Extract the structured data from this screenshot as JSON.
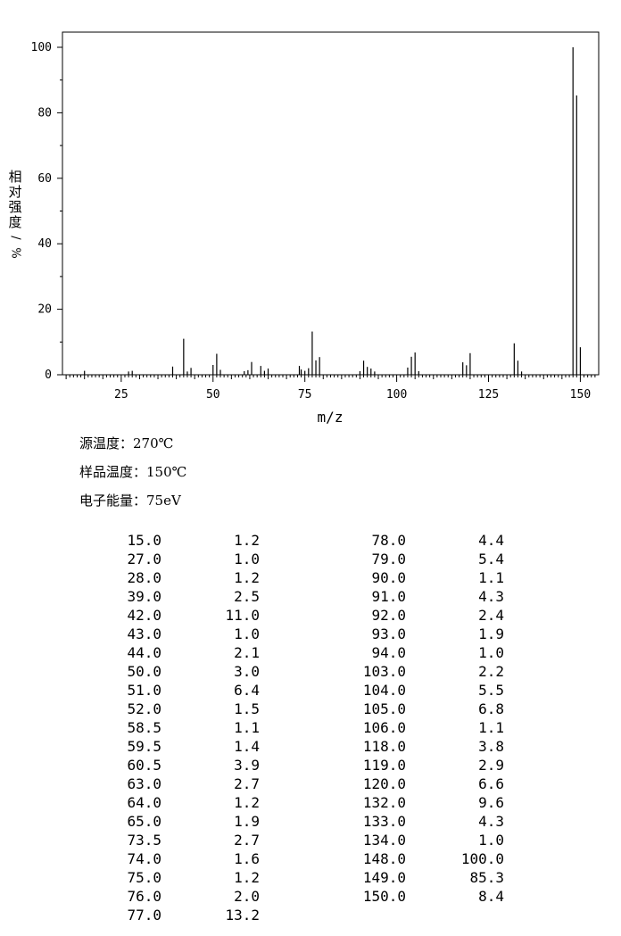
{
  "chart_data": {
    "type": "bar",
    "xlabel": "m/z",
    "ylabel": "相对强度/%",
    "xlim": [
      9,
      155
    ],
    "ylim": [
      0,
      105
    ],
    "xticks": [
      25,
      50,
      75,
      100,
      125,
      150
    ],
    "yticks": [
      0,
      20,
      40,
      60,
      80,
      100
    ],
    "grid": false,
    "peaks": [
      [
        15.0,
        1.2
      ],
      [
        27.0,
        1.0
      ],
      [
        28.0,
        1.2
      ],
      [
        39.0,
        2.5
      ],
      [
        42.0,
        11.0
      ],
      [
        43.0,
        1.0
      ],
      [
        44.0,
        2.1
      ],
      [
        50.0,
        3.0
      ],
      [
        51.0,
        6.4
      ],
      [
        52.0,
        1.5
      ],
      [
        58.5,
        1.1
      ],
      [
        59.5,
        1.4
      ],
      [
        60.5,
        3.9
      ],
      [
        63.0,
        2.7
      ],
      [
        64.0,
        1.2
      ],
      [
        65.0,
        1.9
      ],
      [
        73.5,
        2.7
      ],
      [
        74.0,
        1.6
      ],
      [
        75.0,
        1.2
      ],
      [
        76.0,
        2.0
      ],
      [
        77.0,
        13.2
      ],
      [
        78.0,
        4.4
      ],
      [
        79.0,
        5.4
      ],
      [
        90.0,
        1.1
      ],
      [
        91.0,
        4.3
      ],
      [
        92.0,
        2.4
      ],
      [
        93.0,
        1.9
      ],
      [
        94.0,
        1.0
      ],
      [
        103.0,
        2.2
      ],
      [
        104.0,
        5.5
      ],
      [
        105.0,
        6.8
      ],
      [
        106.0,
        1.1
      ],
      [
        118.0,
        3.8
      ],
      [
        119.0,
        2.9
      ],
      [
        120.0,
        6.6
      ],
      [
        132.0,
        9.6
      ],
      [
        133.0,
        4.3
      ],
      [
        134.0,
        1.0
      ],
      [
        148.0,
        100.0
      ],
      [
        149.0,
        85.3
      ],
      [
        150.0,
        8.4
      ]
    ]
  },
  "conditions": {
    "source_temp": "源温度：270℃",
    "sample_temp": "样品温度：150℃",
    "electron_energy": "电子能量：75eV"
  },
  "table": {
    "left": [
      [
        "15.0",
        "1.2"
      ],
      [
        "27.0",
        "1.0"
      ],
      [
        "28.0",
        "1.2"
      ],
      [
        "39.0",
        "2.5"
      ],
      [
        "42.0",
        "11.0"
      ],
      [
        "43.0",
        "1.0"
      ],
      [
        "44.0",
        "2.1"
      ],
      [
        "50.0",
        "3.0"
      ],
      [
        "51.0",
        "6.4"
      ],
      [
        "52.0",
        "1.5"
      ],
      [
        "58.5",
        "1.1"
      ],
      [
        "59.5",
        "1.4"
      ],
      [
        "60.5",
        "3.9"
      ],
      [
        "63.0",
        "2.7"
      ],
      [
        "64.0",
        "1.2"
      ],
      [
        "65.0",
        "1.9"
      ],
      [
        "73.5",
        "2.7"
      ],
      [
        "74.0",
        "1.6"
      ],
      [
        "75.0",
        "1.2"
      ],
      [
        "76.0",
        "2.0"
      ],
      [
        "77.0",
        "13.2"
      ]
    ],
    "right": [
      [
        "78.0",
        "4.4"
      ],
      [
        "79.0",
        "5.4"
      ],
      [
        "90.0",
        "1.1"
      ],
      [
        "91.0",
        "4.3"
      ],
      [
        "92.0",
        "2.4"
      ],
      [
        "93.0",
        "1.9"
      ],
      [
        "94.0",
        "1.0"
      ],
      [
        "103.0",
        "2.2"
      ],
      [
        "104.0",
        "5.5"
      ],
      [
        "105.0",
        "6.8"
      ],
      [
        "106.0",
        "1.1"
      ],
      [
        "118.0",
        "3.8"
      ],
      [
        "119.0",
        "2.9"
      ],
      [
        "120.0",
        "6.6"
      ],
      [
        "132.0",
        "9.6"
      ],
      [
        "133.0",
        "4.3"
      ],
      [
        "134.0",
        "1.0"
      ],
      [
        "148.0",
        "100.0"
      ],
      [
        "149.0",
        "85.3"
      ],
      [
        "150.0",
        "8.4"
      ]
    ]
  }
}
